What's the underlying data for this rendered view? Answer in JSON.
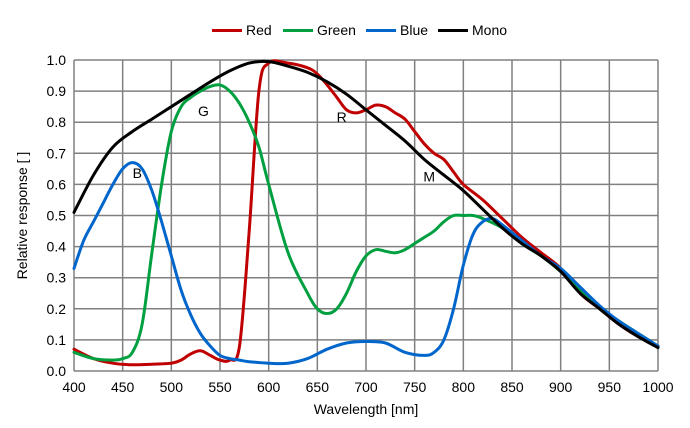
{
  "chart_data": {
    "type": "line",
    "title": "",
    "xlabel": "Wavelength [nm]",
    "ylabel": "Relative response [ ]",
    "xlim": [
      400,
      1000
    ],
    "ylim": [
      0,
      1.0
    ],
    "xticks": [
      "400",
      "450",
      "500",
      "550",
      "600",
      "650",
      "700",
      "750",
      "800",
      "850",
      "900",
      "950",
      "1000"
    ],
    "yticks": [
      "0.0",
      "0.1",
      "0.2",
      "0.3",
      "0.4",
      "0.5",
      "0.6",
      "0.7",
      "0.8",
      "0.9",
      "1.0"
    ],
    "grid": true,
    "legend_position": "top-center",
    "annotations": [
      {
        "text": "B",
        "x": 465,
        "y": 0.62
      },
      {
        "text": "G",
        "x": 533,
        "y": 0.82
      },
      {
        "text": "R",
        "x": 675,
        "y": 0.8
      },
      {
        "text": "M",
        "x": 765,
        "y": 0.61
      }
    ],
    "series": [
      {
        "name": "Red",
        "color": "#c00000",
        "x": [
          400,
          420,
          440,
          460,
          480,
          500,
          510,
          520,
          530,
          540,
          550,
          560,
          570,
          580,
          590,
          600,
          620,
          640,
          650,
          660,
          670,
          680,
          690,
          700,
          710,
          720,
          730,
          740,
          750,
          760,
          770,
          780,
          790,
          800,
          820,
          840,
          860,
          880,
          900,
          920,
          940,
          960,
          980,
          1000
        ],
        "y": [
          0.07,
          0.04,
          0.025,
          0.02,
          0.022,
          0.025,
          0.035,
          0.055,
          0.065,
          0.05,
          0.035,
          0.035,
          0.08,
          0.45,
          0.9,
          0.99,
          0.99,
          0.975,
          0.955,
          0.92,
          0.88,
          0.84,
          0.83,
          0.84,
          0.855,
          0.85,
          0.83,
          0.81,
          0.77,
          0.73,
          0.7,
          0.68,
          0.64,
          0.6,
          0.55,
          0.49,
          0.43,
          0.38,
          0.33,
          0.25,
          0.2,
          0.15,
          0.11,
          0.08
        ]
      },
      {
        "name": "Green",
        "color": "#00a040",
        "x": [
          400,
          420,
          440,
          450,
          460,
          470,
          480,
          490,
          500,
          510,
          520,
          530,
          540,
          550,
          560,
          570,
          580,
          590,
          600,
          620,
          640,
          650,
          660,
          670,
          680,
          690,
          700,
          710,
          720,
          730,
          740,
          750,
          760,
          770,
          780,
          790,
          800,
          810,
          820,
          840,
          860,
          880,
          900,
          920,
          940,
          960,
          980,
          1000
        ],
        "y": [
          0.06,
          0.04,
          0.035,
          0.04,
          0.06,
          0.15,
          0.38,
          0.6,
          0.77,
          0.85,
          0.88,
          0.9,
          0.915,
          0.92,
          0.9,
          0.86,
          0.8,
          0.72,
          0.6,
          0.38,
          0.25,
          0.2,
          0.185,
          0.2,
          0.25,
          0.32,
          0.37,
          0.39,
          0.385,
          0.38,
          0.39,
          0.41,
          0.43,
          0.45,
          0.48,
          0.5,
          0.5,
          0.5,
          0.49,
          0.46,
          0.41,
          0.37,
          0.32,
          0.26,
          0.2,
          0.16,
          0.12,
          0.08
        ]
      },
      {
        "name": "Blue",
        "color": "#0066cc",
        "x": [
          400,
          410,
          420,
          430,
          440,
          450,
          460,
          470,
          480,
          490,
          500,
          510,
          520,
          530,
          540,
          550,
          560,
          570,
          580,
          600,
          620,
          640,
          660,
          680,
          700,
          720,
          740,
          760,
          770,
          780,
          790,
          800,
          810,
          820,
          830,
          840,
          860,
          880,
          900,
          920,
          940,
          960,
          980,
          1000
        ],
        "y": [
          0.33,
          0.42,
          0.48,
          0.54,
          0.6,
          0.65,
          0.67,
          0.65,
          0.58,
          0.48,
          0.37,
          0.26,
          0.18,
          0.12,
          0.08,
          0.05,
          0.04,
          0.035,
          0.03,
          0.025,
          0.025,
          0.04,
          0.07,
          0.09,
          0.095,
          0.09,
          0.06,
          0.05,
          0.06,
          0.1,
          0.2,
          0.34,
          0.44,
          0.48,
          0.49,
          0.47,
          0.42,
          0.37,
          0.33,
          0.27,
          0.21,
          0.16,
          0.12,
          0.08
        ]
      },
      {
        "name": "Mono",
        "color": "#000000",
        "x": [
          400,
          420,
          440,
          460,
          480,
          500,
          520,
          540,
          560,
          580,
          600,
          620,
          640,
          660,
          680,
          700,
          720,
          740,
          760,
          780,
          800,
          820,
          840,
          860,
          880,
          900,
          920,
          940,
          960,
          980,
          1000
        ],
        "y": [
          0.51,
          0.63,
          0.72,
          0.77,
          0.81,
          0.85,
          0.89,
          0.93,
          0.965,
          0.99,
          0.995,
          0.98,
          0.96,
          0.93,
          0.89,
          0.84,
          0.79,
          0.74,
          0.68,
          0.63,
          0.58,
          0.52,
          0.46,
          0.41,
          0.37,
          0.32,
          0.25,
          0.2,
          0.15,
          0.11,
          0.075
        ]
      }
    ]
  }
}
